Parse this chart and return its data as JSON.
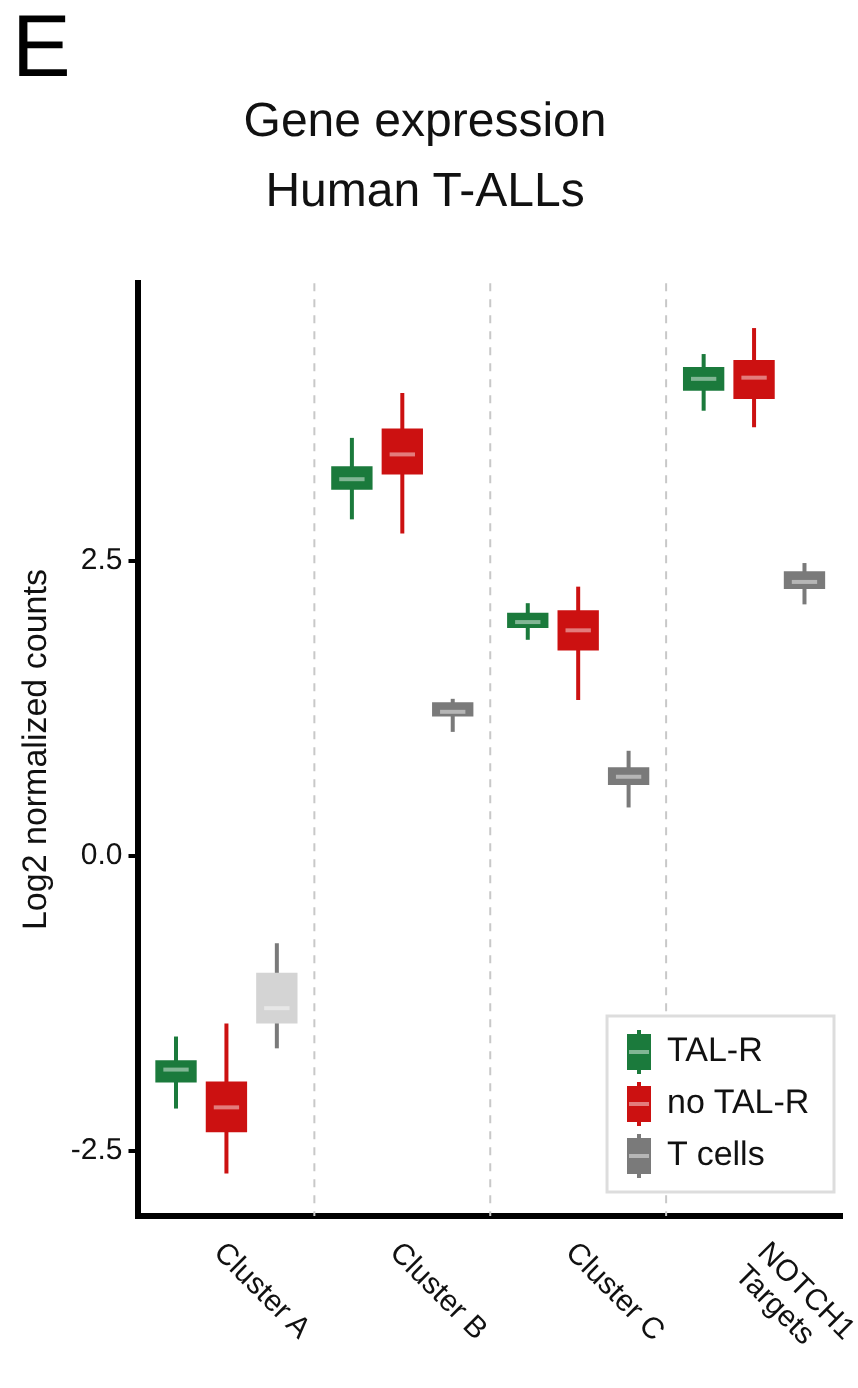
{
  "chart_data": {
    "type": "box",
    "title": "Gene expression\nHuman T-ALLs",
    "ylabel": "Log2 normalized counts",
    "annotations": [
      "E"
    ],
    "categories": [
      "Cluster A",
      "Cluster B",
      "Cluster C",
      "NOTCH1 Targets"
    ],
    "series": [
      {
        "name": "TAL-R",
        "color": "#1b7a3c",
        "boxes": [
          {
            "low": -2.14,
            "q1": -1.92,
            "median": -1.81,
            "q3": -1.73,
            "high": -1.53
          },
          {
            "low": 2.85,
            "q1": 3.1,
            "median": 3.19,
            "q3": 3.3,
            "high": 3.54
          },
          {
            "low": 1.83,
            "q1": 1.93,
            "median": 1.98,
            "q3": 2.06,
            "high": 2.14
          },
          {
            "low": 3.77,
            "q1": 3.94,
            "median": 4.04,
            "q3": 4.14,
            "high": 4.25
          }
        ]
      },
      {
        "name": "no TAL-R",
        "color": "#cc1111",
        "boxes": [
          {
            "low": -2.69,
            "q1": -2.34,
            "median": -2.13,
            "q3": -1.91,
            "high": -1.42
          },
          {
            "low": 2.73,
            "q1": 3.23,
            "median": 3.4,
            "q3": 3.62,
            "high": 3.92
          },
          {
            "low": 1.32,
            "q1": 1.74,
            "median": 1.91,
            "q3": 2.08,
            "high": 2.28
          },
          {
            "low": 3.63,
            "q1": 3.87,
            "median": 4.05,
            "q3": 4.2,
            "high": 4.47
          }
        ]
      },
      {
        "name": "T cells",
        "color": "#7a7a7a",
        "colors": [
          "#d4d4d4",
          "#7a7a7a",
          "#7a7a7a",
          "#7a7a7a"
        ],
        "boxes": [
          {
            "low": -1.63,
            "q1": -1.42,
            "median": -1.29,
            "q3": -0.99,
            "high": -0.74
          },
          {
            "low": 1.05,
            "q1": 1.18,
            "median": 1.22,
            "q3": 1.3,
            "high": 1.33
          },
          {
            "low": 0.41,
            "q1": 0.6,
            "median": 0.67,
            "q3": 0.75,
            "high": 0.89
          },
          {
            "low": 2.13,
            "q1": 2.26,
            "median": 2.32,
            "q3": 2.41,
            "high": 2.48
          }
        ]
      }
    ],
    "ylim": [
      -3.05,
      4.85
    ],
    "yticks": [
      {
        "value": 2.5,
        "label": "2.5"
      },
      {
        "value": 0,
        "label": "0.0"
      },
      {
        "value": -2.5,
        "label": "-2.5"
      }
    ],
    "grid": "x",
    "legend": "bottom right"
  }
}
